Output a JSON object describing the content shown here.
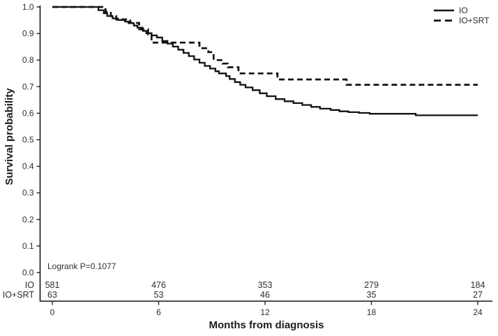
{
  "figure": {
    "background": "#ffffff",
    "line_color": "#161616",
    "text_color": "#2e2e2e"
  },
  "chart_data": {
    "type": "line",
    "subtype": "kaplan_meier_step",
    "title": "",
    "xlabel": "Months from diagnosis",
    "ylabel": "Survival probability",
    "xlim": [
      0,
      24
    ],
    "ylim": [
      0.0,
      1.0
    ],
    "xticks": [
      "0",
      "6",
      "12",
      "18",
      "24"
    ],
    "yticks": [
      "0.0",
      "0.1",
      "0.2",
      "0.3",
      "0.4",
      "0.5",
      "0.6",
      "0.7",
      "0.8",
      "0.9",
      "1.0"
    ],
    "grid": false,
    "legend_position": "top-right",
    "annotation": "Logrank P=0.1077",
    "series": [
      {
        "name": "IO",
        "line_style": "solid",
        "color": "#121212",
        "points": [
          [
            0,
            1.0
          ],
          [
            2.2,
            1.0
          ],
          [
            2.6,
            0.988
          ],
          [
            2.9,
            0.976
          ],
          [
            3.1,
            0.966
          ],
          [
            3.4,
            0.957
          ],
          [
            3.7,
            0.951
          ],
          [
            4.1,
            0.945
          ],
          [
            4.3,
            0.939
          ],
          [
            4.6,
            0.93
          ],
          [
            4.8,
            0.922
          ],
          [
            5.1,
            0.91
          ],
          [
            5.3,
            0.901
          ],
          [
            5.6,
            0.893
          ],
          [
            5.9,
            0.885
          ],
          [
            6.2,
            0.872
          ],
          [
            6.5,
            0.862
          ],
          [
            6.8,
            0.851
          ],
          [
            7.1,
            0.839
          ],
          [
            7.4,
            0.827
          ],
          [
            7.7,
            0.815
          ],
          [
            8.0,
            0.802
          ],
          [
            8.3,
            0.79
          ],
          [
            8.6,
            0.778
          ],
          [
            8.9,
            0.768
          ],
          [
            9.2,
            0.758
          ],
          [
            9.4,
            0.75
          ],
          [
            9.8,
            0.74
          ],
          [
            10.0,
            0.729
          ],
          [
            10.3,
            0.717
          ],
          [
            10.6,
            0.707
          ],
          [
            10.9,
            0.697
          ],
          [
            11.3,
            0.687
          ],
          [
            11.7,
            0.675
          ],
          [
            12.1,
            0.664
          ],
          [
            12.6,
            0.653
          ],
          [
            13.1,
            0.645
          ],
          [
            13.6,
            0.638
          ],
          [
            14.1,
            0.631
          ],
          [
            14.6,
            0.624
          ],
          [
            15.1,
            0.617
          ],
          [
            15.7,
            0.612
          ],
          [
            16.2,
            0.607
          ],
          [
            16.7,
            0.604
          ],
          [
            17.3,
            0.601
          ],
          [
            17.9,
            0.598
          ],
          [
            20.5,
            0.592
          ],
          [
            24,
            0.592
          ]
        ]
      },
      {
        "name": "IO+SRT",
        "line_style": "dashed",
        "color": "#121212",
        "points": [
          [
            0,
            1.0
          ],
          [
            2.8,
            1.0
          ],
          [
            3.0,
            0.982
          ],
          [
            3.3,
            0.966
          ],
          [
            3.6,
            0.953
          ],
          [
            4.4,
            0.94
          ],
          [
            4.9,
            0.916
          ],
          [
            5.4,
            0.896
          ],
          [
            5.6,
            0.866
          ],
          [
            8.1,
            0.866
          ],
          [
            8.3,
            0.845
          ],
          [
            8.8,
            0.83
          ],
          [
            9.1,
            0.8
          ],
          [
            9.6,
            0.787
          ],
          [
            9.9,
            0.773
          ],
          [
            10.5,
            0.75
          ],
          [
            12.5,
            0.75
          ],
          [
            12.7,
            0.727
          ],
          [
            16.4,
            0.727
          ],
          [
            16.6,
            0.707
          ],
          [
            24,
            0.707
          ]
        ]
      }
    ],
    "risk_table": {
      "times": [
        0,
        6,
        12,
        18,
        24
      ],
      "rows": [
        {
          "label": "IO",
          "counts": [
            "581",
            "476",
            "353",
            "279",
            "184"
          ]
        },
        {
          "label": "IO+SRT",
          "counts": [
            "63",
            "53",
            "46",
            "35",
            "27"
          ]
        }
      ]
    }
  }
}
